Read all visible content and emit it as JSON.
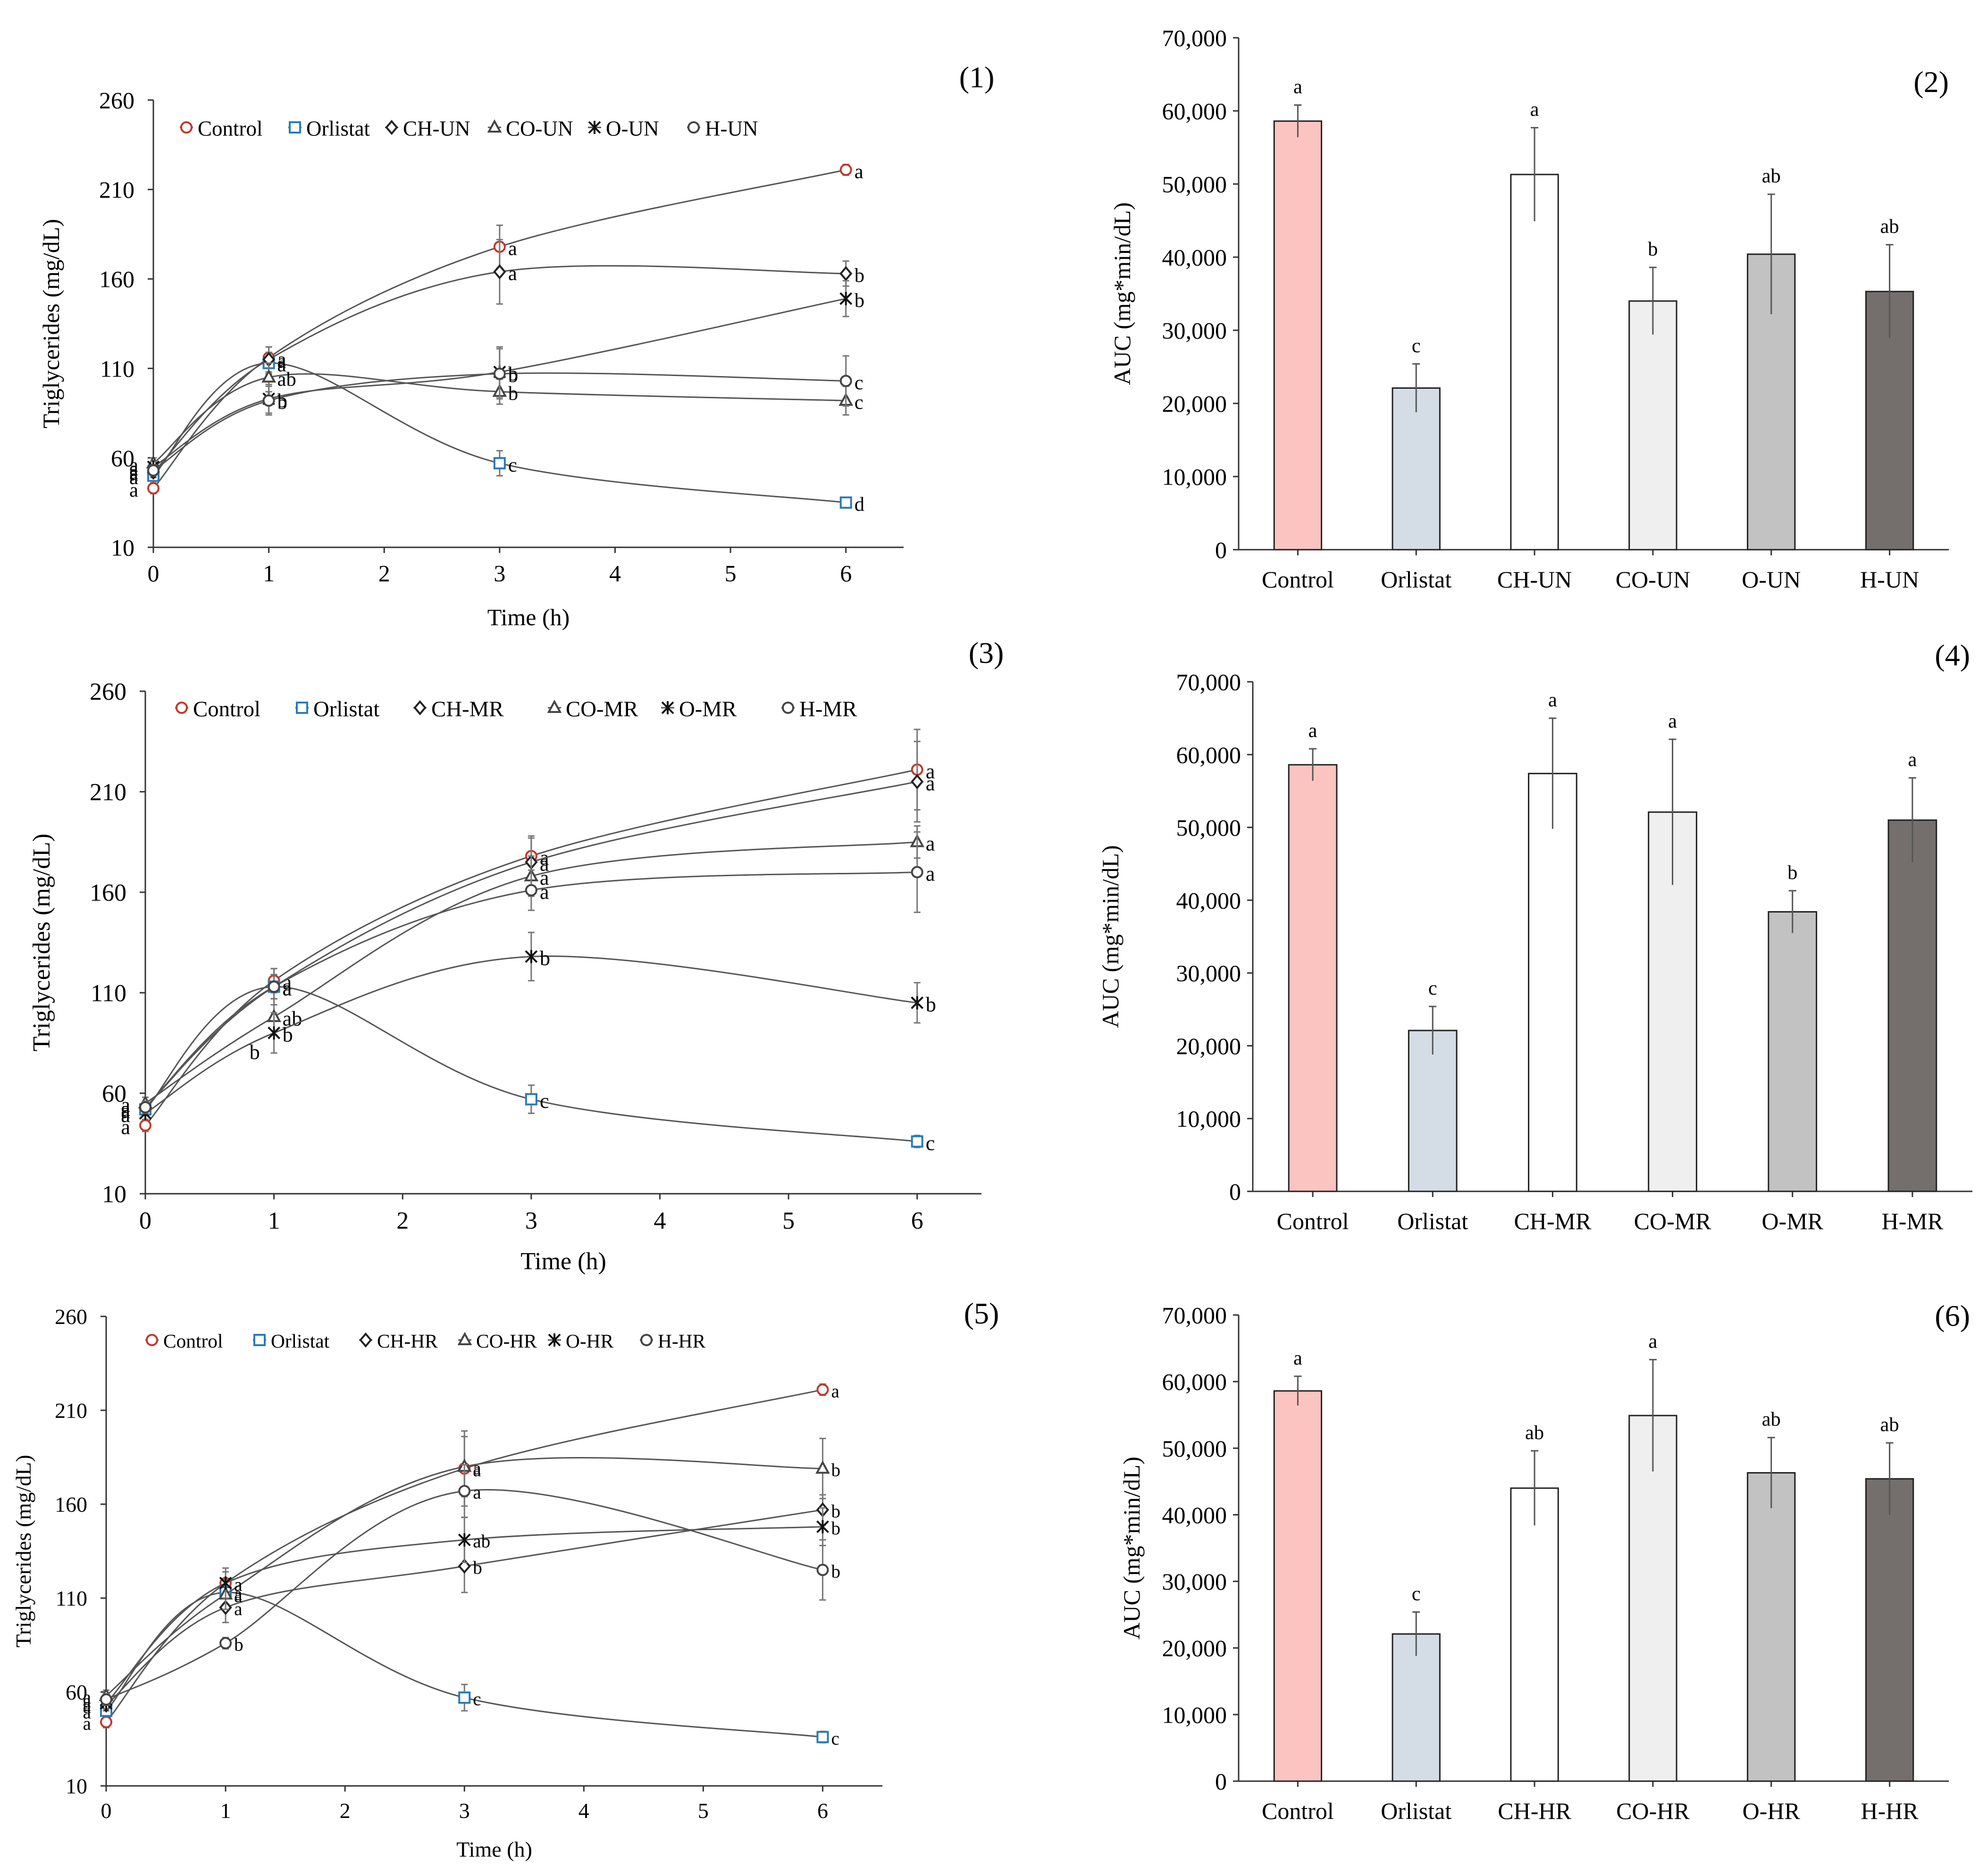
{
  "chart_data": [
    {
      "id": "p1",
      "panel_label": "(1)",
      "type": "line",
      "xlabel": "Time (h)",
      "ylabel": "Triglycerides  (mg/dL)",
      "xlim": [
        0,
        6.5
      ],
      "xticks": [
        0,
        1,
        2,
        3,
        4,
        5,
        6
      ],
      "ylim": [
        10,
        260
      ],
      "yticks": [
        10,
        60,
        110,
        160,
        210,
        260
      ],
      "series": [
        {
          "name": "Control",
          "marker": "circle",
          "color": "#c0392b",
          "x": [
            0,
            1,
            3,
            6
          ],
          "y": [
            43,
            116,
            178,
            221
          ],
          "err": [
            3,
            6,
            12,
            3
          ],
          "letters": [
            "a",
            "a",
            "a",
            "a"
          ]
        },
        {
          "name": "Orlistat",
          "marker": "square",
          "color": "#2a7ab8",
          "x": [
            0,
            1,
            3,
            6
          ],
          "y": [
            50,
            113,
            57,
            35
          ],
          "err": [
            3,
            6,
            7,
            2
          ],
          "letters": [
            "a",
            "a",
            "c",
            "d"
          ]
        },
        {
          "name": "CH-UN",
          "marker": "diamond",
          "color": "#222222",
          "x": [
            0,
            1,
            3,
            6
          ],
          "y": [
            52,
            115,
            164,
            163
          ],
          "err": [
            3,
            7,
            18,
            7
          ],
          "letters": [
            "a",
            "a",
            "a",
            "b"
          ]
        },
        {
          "name": "CO-UN",
          "marker": "triangle",
          "color": "#444444",
          "x": [
            0,
            1,
            3,
            6
          ],
          "y": [
            57,
            105,
            97,
            92
          ],
          "err": [
            3,
            8,
            7,
            8
          ],
          "letters": [
            "a",
            "ab",
            "b",
            "c"
          ]
        },
        {
          "name": "O-UN",
          "marker": "star",
          "color": "#111111",
          "x": [
            0,
            1,
            3,
            6
          ],
          "y": [
            55,
            93,
            108,
            149
          ],
          "err": [
            3,
            8,
            14,
            10
          ],
          "letters": [
            "a",
            "b",
            "b",
            "b"
          ]
        },
        {
          "name": "H-UN",
          "marker": "circle",
          "color": "#444444",
          "x": [
            0,
            1,
            3,
            6
          ],
          "y": [
            53,
            92,
            107,
            103
          ],
          "err": [
            3,
            8,
            14,
            14
          ],
          "letters": [
            "a",
            "b",
            "b",
            "c"
          ]
        }
      ]
    },
    {
      "id": "p2",
      "panel_label": "(2)",
      "type": "bar",
      "ylabel": "AUC (mg*min/dL)",
      "ylim": [
        0,
        70000
      ],
      "ytick_labels": [
        "0",
        "10,000",
        "20,000",
        "30,000",
        "40,000",
        "50,000",
        "60,000",
        "70,000"
      ],
      "categories": [
        "Control",
        "Orlistat",
        "CH-UN",
        "CO-UN",
        "O-UN",
        "H-UN"
      ],
      "values": [
        58600,
        22100,
        51300,
        34000,
        40400,
        35300
      ],
      "errors": [
        2200,
        3300,
        6400,
        4600,
        8200,
        6400
      ],
      "letters": [
        "a",
        "c",
        "a",
        "b",
        "ab",
        "ab"
      ],
      "colors": [
        "#fcc4c0",
        "#d4dde6",
        "#ffffff",
        "#efefef",
        "#c2c2c2",
        "#746f6c"
      ]
    },
    {
      "id": "p3",
      "panel_label": "(3)",
      "type": "line",
      "xlabel": "Time (h)",
      "ylabel": "Triglycerides  (mg/dL)",
      "xlim": [
        0,
        6.5
      ],
      "xticks": [
        0,
        1,
        2,
        3,
        4,
        5,
        6
      ],
      "ylim": [
        10,
        260
      ],
      "yticks": [
        10,
        60,
        110,
        160,
        210,
        260
      ],
      "series": [
        {
          "name": "Control",
          "marker": "circle",
          "color": "#c0392b",
          "x": [
            0,
            1,
            3,
            6
          ],
          "y": [
            44,
            116,
            178,
            221
          ],
          "err": [
            3,
            6,
            10,
            20
          ],
          "letters": [
            "a",
            "a",
            "a",
            "a"
          ]
        },
        {
          "name": "Orlistat",
          "marker": "square",
          "color": "#2a7ab8",
          "x": [
            0,
            1,
            3,
            6
          ],
          "y": [
            52,
            113,
            57,
            36
          ],
          "err": [
            3,
            6,
            7,
            3
          ],
          "letters": [
            "a",
            "a",
            "c",
            "c"
          ]
        },
        {
          "name": "CH-MR",
          "marker": "diamond",
          "color": "#222222",
          "x": [
            0,
            1,
            3,
            6
          ],
          "y": [
            53,
            113,
            175,
            215
          ],
          "err": [
            3,
            6,
            12,
            20
          ],
          "letters": [
            "a",
            "a",
            "a",
            "a"
          ]
        },
        {
          "name": "CO-MR",
          "marker": "triangle",
          "color": "#444444",
          "x": [
            0,
            1,
            3,
            6
          ],
          "y": [
            55,
            98,
            168,
            185
          ],
          "err": [
            3,
            9,
            10,
            8
          ],
          "letters": [
            "a",
            "ab",
            "a",
            "a"
          ]
        },
        {
          "name": "O-MR",
          "marker": "star",
          "color": "#111111",
          "x": [
            0,
            1,
            3,
            6
          ],
          "y": [
            50,
            90,
            128,
            105
          ],
          "err": [
            3,
            10,
            12,
            10
          ],
          "letters": [
            "a",
            "b",
            "b",
            "b"
          ]
        },
        {
          "name": "H-MR",
          "marker": "circle",
          "color": "#444444",
          "x": [
            0,
            1,
            3,
            6
          ],
          "y": [
            53,
            113,
            161,
            170
          ],
          "err": [
            3,
            9,
            10,
            20
          ],
          "letters": [
            "a",
            "a",
            "a",
            "a"
          ]
        }
      ],
      "extra_labels": [
        {
          "text": "b",
          "x": 0.85,
          "y": 77
        }
      ]
    },
    {
      "id": "p4",
      "panel_label": "(4)",
      "type": "bar",
      "ylabel": "AUC (mg*min/dL)",
      "ylim": [
        0,
        70000
      ],
      "ytick_labels": [
        "0",
        "10,000",
        "20,000",
        "30,000",
        "40,000",
        "50,000",
        "60,000",
        "70,000"
      ],
      "categories": [
        "Control",
        "Orlistat",
        "CH-MR",
        "CO-MR",
        "O-MR",
        "H-MR"
      ],
      "values": [
        58600,
        22100,
        57400,
        52100,
        38400,
        51000
      ],
      "errors": [
        2200,
        3300,
        7600,
        10000,
        2900,
        5800
      ],
      "letters": [
        "a",
        "c",
        "a",
        "a",
        "b",
        "a"
      ],
      "colors": [
        "#fcc4c0",
        "#d4dde6",
        "#ffffff",
        "#efefef",
        "#c2c2c2",
        "#746f6c"
      ]
    },
    {
      "id": "p5",
      "panel_label": "(5)",
      "type": "line",
      "xlabel": "Time (h)",
      "ylabel": "Triglycerides  (mg/dL)",
      "xlim": [
        0,
        6.5
      ],
      "xticks": [
        0,
        1,
        2,
        3,
        4,
        5,
        6
      ],
      "ylim": [
        10,
        260
      ],
      "yticks": [
        10,
        60,
        110,
        160,
        210,
        260
      ],
      "series": [
        {
          "name": "Control",
          "marker": "circle",
          "color": "#c0392b",
          "x": [
            0,
            1,
            3,
            6
          ],
          "y": [
            44,
            118,
            179,
            221
          ],
          "err": [
            3,
            6,
            20,
            3
          ],
          "letters": [
            "a",
            "a",
            "a",
            "a"
          ]
        },
        {
          "name": "Orlistat",
          "marker": "square",
          "color": "#2a7ab8",
          "x": [
            0,
            1,
            3,
            6
          ],
          "y": [
            50,
            113,
            57,
            36
          ],
          "err": [
            3,
            6,
            7,
            3
          ],
          "letters": [
            "a",
            "a",
            "c",
            "c"
          ]
        },
        {
          "name": "CH-HR",
          "marker": "diamond",
          "color": "#222222",
          "x": [
            0,
            1,
            3,
            6
          ],
          "y": [
            53,
            105,
            127,
            157
          ],
          "err": [
            3,
            8,
            14,
            8
          ],
          "letters": [
            "a",
            "a",
            "b",
            "b"
          ]
        },
        {
          "name": "CO-HR",
          "marker": "triangle",
          "color": "#444444",
          "x": [
            0,
            1,
            3,
            6
          ],
          "y": [
            58,
            112,
            180,
            179
          ],
          "err": [
            3,
            8,
            16,
            16
          ],
          "letters": [
            "a",
            "a",
            "a",
            "b"
          ]
        },
        {
          "name": "O-HR",
          "marker": "star",
          "color": "#111111",
          "x": [
            0,
            1,
            3,
            6
          ],
          "y": [
            54,
            118,
            141,
            148
          ],
          "err": [
            3,
            8,
            12,
            10
          ],
          "letters": [
            "a",
            "a",
            "ab",
            "b"
          ]
        },
        {
          "name": "H-HR",
          "marker": "circle",
          "color": "#444444",
          "x": [
            0,
            1,
            3,
            6
          ],
          "y": [
            56,
            86,
            167,
            125
          ],
          "err": [
            3,
            3,
            14,
            16
          ],
          "letters": [
            "a",
            "b",
            "a",
            "b"
          ]
        }
      ]
    },
    {
      "id": "p6",
      "panel_label": "(6)",
      "type": "bar",
      "ylabel": "AUC (mg*min/dL)",
      "ylim": [
        0,
        70000
      ],
      "ytick_labels": [
        "0",
        "10,000",
        "20,000",
        "30,000",
        "40,000",
        "50,000",
        "60,000",
        "70,000"
      ],
      "categories": [
        "Control",
        "Orlistat",
        "CH-HR",
        "CO-HR",
        "O-HR",
        "H-HR"
      ],
      "values": [
        58600,
        22100,
        44000,
        54900,
        46300,
        45400
      ],
      "errors": [
        2200,
        3300,
        5600,
        8400,
        5300,
        5400
      ],
      "letters": [
        "a",
        "c",
        "ab",
        "a",
        "ab",
        "ab"
      ],
      "colors": [
        "#fcc4c0",
        "#d4dde6",
        "#ffffff",
        "#efefef",
        "#c2c2c2",
        "#746f6c"
      ]
    }
  ]
}
